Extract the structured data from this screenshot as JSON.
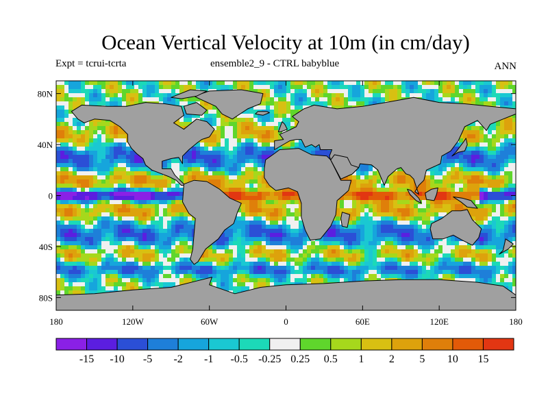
{
  "title": "Ocean Vertical Velocity at 10m (in cm/day)",
  "subtitle_left": "Expt = tcrui-tcrta",
  "subtitle_center": "ensemble2_9 - CTRL babyblue",
  "subtitle_right": "ANN",
  "map": {
    "projection": "cylindrical-equidistant",
    "lon_range": [
      -180,
      180
    ],
    "lat_range": [
      -90,
      90
    ],
    "land_color": "#a0a0a0",
    "coast_color": "#000000"
  },
  "axes": {
    "lat_ticks": [
      {
        "value": 80,
        "label": "80N"
      },
      {
        "value": 40,
        "label": "40N"
      },
      {
        "value": 0,
        "label": "0"
      },
      {
        "value": -40,
        "label": "40S"
      },
      {
        "value": -80,
        "label": "80S"
      }
    ],
    "lon_ticks": [
      {
        "value": -180,
        "label": "180"
      },
      {
        "value": -120,
        "label": "120W"
      },
      {
        "value": -60,
        "label": "60W"
      },
      {
        "value": 0,
        "label": "0"
      },
      {
        "value": 60,
        "label": "60E"
      },
      {
        "value": 120,
        "label": "120E"
      },
      {
        "value": 180,
        "label": "180"
      }
    ]
  },
  "colorbar": {
    "colors": [
      "#8a20e6",
      "#5b1ee0",
      "#2b4fd6",
      "#1e7fd9",
      "#16a5dc",
      "#1ac8d2",
      "#1cd9b8",
      "#f0f0f0",
      "#5fd62c",
      "#a6d81c",
      "#d8c012",
      "#dda20c",
      "#df7f0a",
      "#e25a08",
      "#e23612"
    ],
    "labels": [
      "-15",
      "-10",
      "-5",
      "-2",
      "-1",
      "-0.5",
      "-0.25",
      "0.25",
      "0.5",
      "1",
      "2",
      "5",
      "10",
      "15"
    ]
  }
}
